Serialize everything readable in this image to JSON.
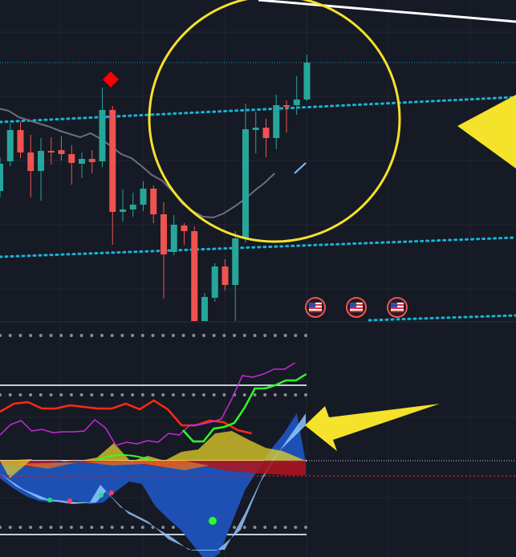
{
  "colors": {
    "background": "#161a25",
    "grid": "#222633",
    "candle_up": "#26a69a",
    "candle_down": "#ef5350",
    "moving_average": "#6b6f80",
    "ma_highlight": "#7ec3ff",
    "channel_dotted": "#17b3d6",
    "annotation_yellow": "#f5e22a",
    "trendline_white": "#ffffff",
    "signal_diamond": "#ff0000",
    "band_white": "#c9ccd6",
    "dotted_levels": "#8a8d99",
    "osc_red": "#ff2a12",
    "osc_magenta": "#c42bd8",
    "osc_green": "#2dff24",
    "wave_blue": "#1e50b4",
    "wave_lightblue": "#8ec8ff",
    "wave_yellow": "#e6d228",
    "wave_red": "#b4141e",
    "wave_orange": "#eb6e1e",
    "zero_line_red": "#d01e1e",
    "dot_green": "#14e678",
    "dot_red": "#ff3c5a",
    "dot_lime": "#28ff28"
  },
  "icons": {
    "event_flag": "us-flag-icon",
    "signal": "red-diamond-icon",
    "pointer": "yellow-arrow-icon"
  },
  "chart_data": [
    {
      "type": "candlestick",
      "panel": "price",
      "title": "",
      "xlabel": "",
      "ylabel": "",
      "grid": true,
      "series": [
        {
          "kind": "candles",
          "values": [
            {
              "o": 238,
              "h": 196,
              "l": 246,
              "c": 204
            },
            {
              "o": 201,
              "h": 154,
              "l": 207,
              "c": 162
            },
            {
              "o": 162,
              "h": 152,
              "l": 197,
              "c": 190
            },
            {
              "o": 190,
              "h": 168,
              "l": 246,
              "c": 213
            },
            {
              "o": 213,
              "h": 172,
              "l": 250,
              "c": 188
            },
            {
              "o": 188,
              "h": 171,
              "l": 205,
              "c": 188
            },
            {
              "o": 187,
              "h": 170,
              "l": 200,
              "c": 192
            },
            {
              "o": 192,
              "h": 181,
              "l": 230,
              "c": 203
            },
            {
              "o": 204,
              "h": 190,
              "l": 222,
              "c": 198
            },
            {
              "o": 198,
              "h": 187,
              "l": 216,
              "c": 202
            },
            {
              "o": 201,
              "h": 109,
              "l": 208,
              "c": 137
            },
            {
              "o": 137,
              "h": 132,
              "l": 305,
              "c": 264
            },
            {
              "o": 264,
              "h": 236,
              "l": 276,
              "c": 261
            },
            {
              "o": 261,
              "h": 240,
              "l": 270,
              "c": 255
            },
            {
              "o": 255,
              "h": 226,
              "l": 263,
              "c": 235
            },
            {
              "o": 235,
              "h": 231,
              "l": 278,
              "c": 267
            },
            {
              "o": 267,
              "h": 252,
              "l": 372,
              "c": 317
            },
            {
              "o": 314,
              "h": 268,
              "l": 318,
              "c": 280
            },
            {
              "o": 281,
              "h": 278,
              "l": 305,
              "c": 288
            },
            {
              "o": 288,
              "h": 282,
              "l": 400,
              "c": 400
            },
            {
              "o": 400,
              "h": 365,
              "l": 400,
              "c": 370
            },
            {
              "o": 371,
              "h": 328,
              "l": 376,
              "c": 332
            },
            {
              "o": 332,
              "h": 323,
              "l": 362,
              "c": 355
            },
            {
              "o": 355,
              "h": 288,
              "l": 400,
              "c": 297
            },
            {
              "o": 297,
              "h": 129,
              "l": 302,
              "c": 161
            },
            {
              "o": 162,
              "h": 139,
              "l": 191,
              "c": 159
            },
            {
              "o": 159,
              "h": 148,
              "l": 196,
              "c": 172
            },
            {
              "o": 172,
              "h": 118,
              "l": 186,
              "c": 131
            },
            {
              "o": 131,
              "h": 125,
              "l": 165,
              "c": 131
            },
            {
              "o": 131,
              "h": 95,
              "l": 143,
              "c": 124
            },
            {
              "o": 124,
              "h": 68,
              "l": 126,
              "c": 78
            }
          ]
        },
        {
          "kind": "moving_average",
          "values": [
            135,
            138,
            146,
            150,
            154,
            158,
            163,
            167,
            171,
            166,
            173,
            182,
            192,
            197,
            207,
            218,
            225,
            238,
            254,
            263,
            270,
            271,
            266,
            258,
            249,
            238,
            228,
            216
          ]
        }
      ]
    },
    {
      "type": "line",
      "panel": "oscillator",
      "title": "",
      "xlabel": "",
      "ylabel": "",
      "grid": true,
      "series": [
        {
          "kind": "red_line",
          "values": [
            513,
            503,
            501,
            509,
            509,
            505,
            507,
            509,
            509,
            503,
            510,
            499,
            510,
            530,
            530,
            524,
            526,
            536,
            540
          ]
        },
        {
          "kind": "magenta_line",
          "values": [
            542,
            529,
            524,
            537,
            535,
            539,
            538,
            538,
            537,
            523,
            533,
            555,
            551,
            553,
            549,
            551,
            540,
            542,
            530,
            529,
            526,
            522,
            497,
            468,
            470,
            466,
            460,
            460,
            452
          ]
        },
        {
          "kind": "green_line",
          "values": [
            536,
            550,
            550,
            534,
            532,
            527,
            508,
            484,
            484,
            480,
            474,
            474,
            466
          ]
        },
        {
          "kind": "blue_wave",
          "values": [
            596,
            608,
            618,
            624,
            626,
            624,
            624,
            628,
            626,
            612,
            600,
            603,
            630,
            646,
            660,
            680,
            700,
            690,
            650,
            610,
            585,
            560,
            540,
            515
          ]
        },
        {
          "kind": "yellow_histogram",
          "values": [
            574,
            570,
            552,
            575,
            568,
            574,
            563,
            560,
            540,
            537,
            548,
            558,
            562
          ]
        }
      ]
    }
  ]
}
